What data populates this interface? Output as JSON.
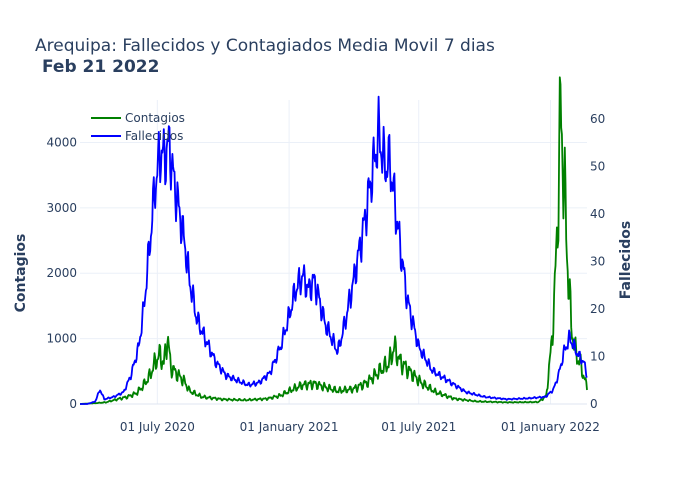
{
  "chart_data": {
    "type": "line",
    "title": "Arequipa: Fallecidos y Contagiados Media Movil 7 dias",
    "subtitle": "Feb 21 2022",
    "xlabel": "",
    "ylabel_left": "Contagios",
    "ylabel_right": "Fallecidos",
    "x_ticks": [
      "01 July 2020",
      "01 January 2021",
      "01 July 2021",
      "01 January 2022"
    ],
    "y_left_ticks": [
      "0",
      "1000",
      "2000",
      "3000",
      "4000"
    ],
    "y_right_ticks": [
      "0",
      "10",
      "20",
      "30",
      "40",
      "50",
      "60"
    ],
    "ylim_left": [
      0,
      4650
    ],
    "ylim_right": [
      0,
      64
    ],
    "grid": true,
    "legend": "top-left",
    "series": [
      {
        "name": "Contagios",
        "axis": "left",
        "color": "#008000",
        "points": [
          [
            "2020-03-15",
            0
          ],
          [
            "2020-04-01",
            10
          ],
          [
            "2020-04-20",
            25
          ],
          [
            "2020-05-05",
            70
          ],
          [
            "2020-05-20",
            110
          ],
          [
            "2020-06-01",
            160
          ],
          [
            "2020-06-10",
            260
          ],
          [
            "2020-06-20",
            420
          ],
          [
            "2020-06-28",
            640
          ],
          [
            "2020-07-05",
            760
          ],
          [
            "2020-07-10",
            600
          ],
          [
            "2020-07-15",
            1030
          ],
          [
            "2020-07-20",
            560
          ],
          [
            "2020-07-25",
            500
          ],
          [
            "2020-08-01",
            420
          ],
          [
            "2020-08-08",
            340
          ],
          [
            "2020-08-15",
            200
          ],
          [
            "2020-09-01",
            110
          ],
          [
            "2020-10-01",
            70
          ],
          [
            "2020-11-01",
            60
          ],
          [
            "2020-12-01",
            80
          ],
          [
            "2020-12-20",
            130
          ],
          [
            "2021-01-05",
            220
          ],
          [
            "2021-01-20",
            290
          ],
          [
            "2021-02-05",
            310
          ],
          [
            "2021-02-20",
            260
          ],
          [
            "2021-03-10",
            200
          ],
          [
            "2021-04-01",
            230
          ],
          [
            "2021-04-20",
            330
          ],
          [
            "2021-05-05",
            480
          ],
          [
            "2021-05-20",
            620
          ],
          [
            "2021-05-28",
            870
          ],
          [
            "2021-06-05",
            650
          ],
          [
            "2021-06-20",
            480
          ],
          [
            "2021-07-05",
            320
          ],
          [
            "2021-07-25",
            180
          ],
          [
            "2021-08-20",
            80
          ],
          [
            "2021-09-20",
            40
          ],
          [
            "2021-11-01",
            25
          ],
          [
            "2021-12-15",
            30
          ],
          [
            "2021-12-26",
            120
          ],
          [
            "2022-01-02",
            850
          ],
          [
            "2022-01-07",
            1700
          ],
          [
            "2022-01-11",
            2900
          ],
          [
            "2022-01-15",
            4450
          ],
          [
            "2022-01-19",
            3700
          ],
          [
            "2022-01-24",
            2350
          ],
          [
            "2022-01-30",
            1200
          ],
          [
            "2022-02-05",
            800
          ],
          [
            "2022-02-12",
            600
          ],
          [
            "2022-02-21",
            250
          ]
        ]
      },
      {
        "name": "Fallecidos",
        "axis": "right",
        "color": "#0000ff",
        "points": [
          [
            "2020-03-15",
            0
          ],
          [
            "2020-03-25",
            0
          ],
          [
            "2020-04-05",
            0.5
          ],
          [
            "2020-04-12",
            3
          ],
          [
            "2020-04-18",
            1
          ],
          [
            "2020-05-01",
            1.5
          ],
          [
            "2020-05-15",
            2.5
          ],
          [
            "2020-05-25",
            6
          ],
          [
            "2020-06-05",
            12
          ],
          [
            "2020-06-12",
            20
          ],
          [
            "2020-06-20",
            33
          ],
          [
            "2020-06-28",
            46
          ],
          [
            "2020-07-05",
            53
          ],
          [
            "2020-07-12",
            52
          ],
          [
            "2020-07-18",
            55
          ],
          [
            "2020-07-22",
            49
          ],
          [
            "2020-07-30",
            42
          ],
          [
            "2020-08-08",
            34
          ],
          [
            "2020-08-15",
            26
          ],
          [
            "2020-08-25",
            18
          ],
          [
            "2020-09-05",
            14
          ],
          [
            "2020-09-20",
            9
          ],
          [
            "2020-10-05",
            6
          ],
          [
            "2020-10-20",
            5
          ],
          [
            "2020-11-05",
            4
          ],
          [
            "2020-11-20",
            4.5
          ],
          [
            "2020-12-05",
            6.5
          ],
          [
            "2020-12-20",
            12
          ],
          [
            "2020-12-31",
            18
          ],
          [
            "2021-01-10",
            24
          ],
          [
            "2021-01-20",
            27
          ],
          [
            "2021-01-28",
            24
          ],
          [
            "2021-02-05",
            26
          ],
          [
            "2021-02-12",
            22
          ],
          [
            "2021-02-20",
            17
          ],
          [
            "2021-03-01",
            14
          ],
          [
            "2021-03-10",
            11
          ],
          [
            "2021-03-20",
            17
          ],
          [
            "2021-04-01",
            26
          ],
          [
            "2021-04-15",
            37
          ],
          [
            "2021-04-25",
            47
          ],
          [
            "2021-05-01",
            52
          ],
          [
            "2021-05-06",
            57
          ],
          [
            "2021-05-15",
            50
          ],
          [
            "2021-05-22",
            51
          ],
          [
            "2021-06-01",
            38
          ],
          [
            "2021-06-15",
            22
          ],
          [
            "2021-07-01",
            12
          ],
          [
            "2021-07-20",
            7
          ],
          [
            "2021-08-10",
            5
          ],
          [
            "2021-09-05",
            2.5
          ],
          [
            "2021-10-01",
            1.5
          ],
          [
            "2021-11-01",
            1
          ],
          [
            "2021-12-01",
            1.2
          ],
          [
            "2021-12-25",
            1.5
          ],
          [
            "2022-01-05",
            3
          ],
          [
            "2022-01-12",
            6
          ],
          [
            "2022-01-20",
            11
          ],
          [
            "2022-01-28",
            14
          ],
          [
            "2022-02-03",
            12
          ],
          [
            "2022-02-10",
            10
          ],
          [
            "2022-02-16",
            9
          ],
          [
            "2022-02-21",
            6
          ]
        ]
      }
    ]
  }
}
